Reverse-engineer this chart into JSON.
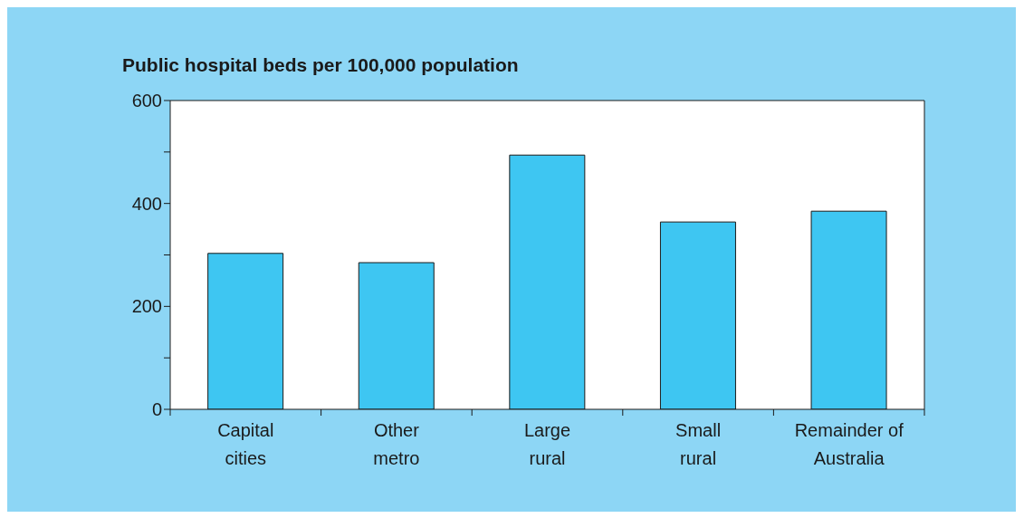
{
  "chart_data": {
    "type": "bar",
    "title": "Public hospital beds per 100,000 population",
    "categories": [
      "Capital cities",
      "Other metro",
      "Large rural",
      "Small rural",
      "Remainder of Australia"
    ],
    "values": [
      303,
      285,
      494,
      364,
      385
    ],
    "color": "#3ec6f2",
    "ylim": [
      0,
      600
    ],
    "yticks": [
      0,
      {
        "value": 100,
        "label": null
      },
      200,
      {
        "value": 300,
        "label": null
      },
      400,
      {
        "value": 500,
        "label": null
      },
      600
    ],
    "grid": false
  }
}
